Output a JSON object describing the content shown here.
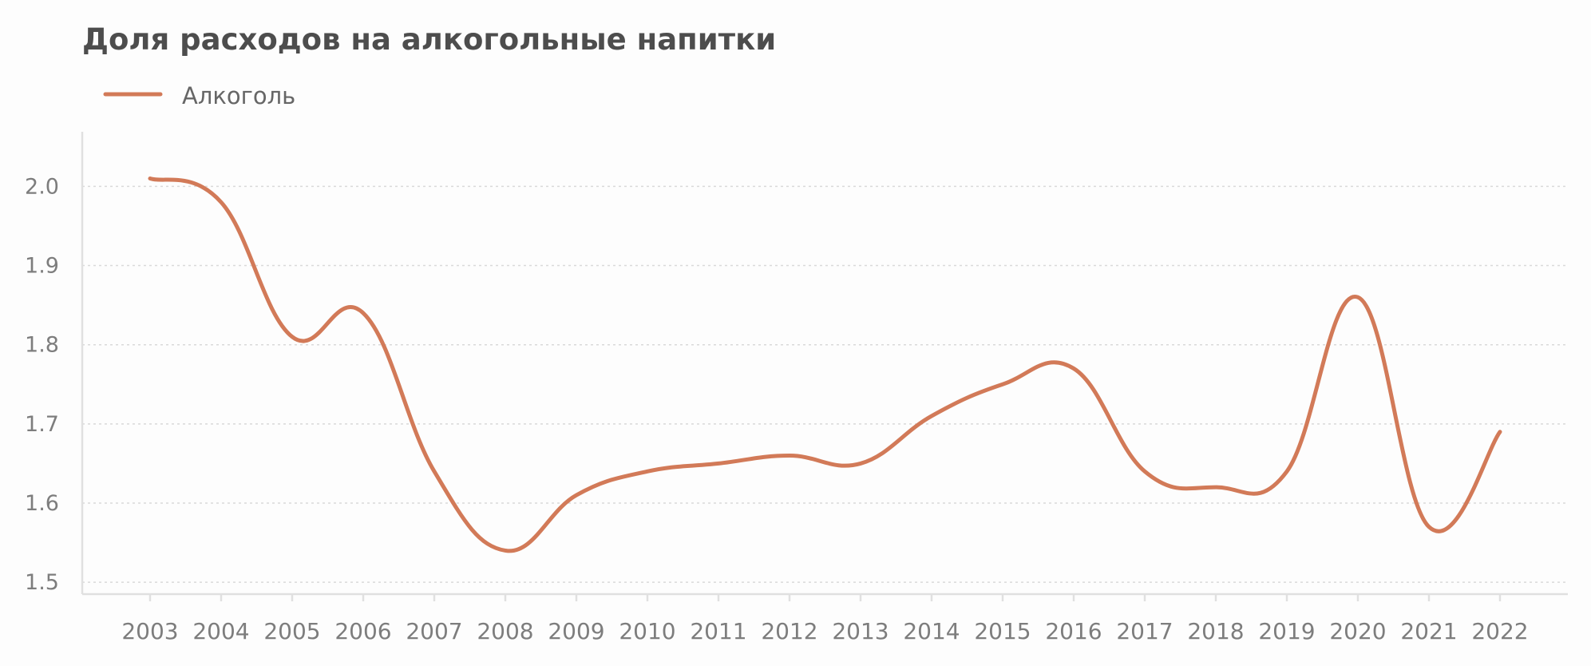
{
  "chart_data": {
    "type": "line",
    "title": "Доля расходов на алкогольные напитки",
    "xlabel": "",
    "ylabel": "",
    "x": [
      "2003",
      "2004",
      "2005",
      "2006",
      "2007",
      "2008",
      "2009",
      "2010",
      "2011",
      "2012",
      "2013",
      "2014",
      "2015",
      "2016",
      "2017",
      "2018",
      "2019",
      "2020",
      "2021",
      "2022"
    ],
    "series": [
      {
        "name": "Алкоголь",
        "color": "#d27a58",
        "values": [
          2.01,
          1.98,
          1.81,
          1.84,
          1.64,
          1.54,
          1.61,
          1.64,
          1.65,
          1.66,
          1.65,
          1.71,
          1.75,
          1.77,
          1.64,
          1.62,
          1.64,
          1.86,
          1.57,
          1.69
        ]
      }
    ],
    "yticks": [
      "1.5",
      "1.6",
      "1.7",
      "1.8",
      "1.9",
      "2.0"
    ],
    "ylim": [
      1.485,
      2.069
    ],
    "grid": true,
    "legend": "top-left",
    "smooth": true
  },
  "colors": {
    "background": "#fdfdfd",
    "title": "#4d4d4d",
    "axis": "#e0e0e0",
    "grid": "#d9d9d9",
    "tick_label": "#7d7d7d",
    "legend_label": "#666666"
  }
}
